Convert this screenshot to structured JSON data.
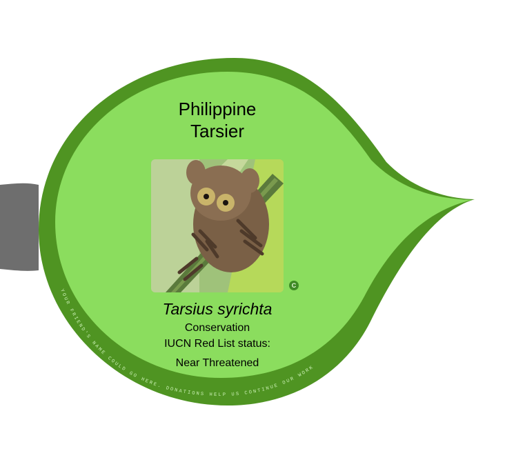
{
  "species": {
    "common_name_line1": "Philippine",
    "common_name_line2": "Tarsier",
    "scientific_name": "Tarsius syrichta",
    "status_heading_1": "Conservation",
    "status_heading_2": "IUCN Red List status:",
    "status_value": "Near Threatened"
  },
  "photo": {
    "copyright_badge": "C"
  },
  "arc_caption": "YOUR FRIEND'S NAME COULD GO HERE. DONATIONS HELP US CONTINUE OUR WORK",
  "colors": {
    "outer_ring": "#4f9422",
    "inner_fill": "#8bdd5e",
    "side_tab": "#6e6e6e",
    "caption_text": "#c9efb3",
    "badge": "#3f8a25"
  }
}
